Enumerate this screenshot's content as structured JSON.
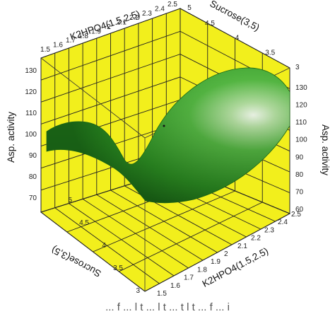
{
  "chart_data": {
    "type": "surface3d",
    "title": "",
    "x_axis": {
      "label": "K2HPO4(1.5,2.5)",
      "range": [
        1.5,
        2.5
      ],
      "ticks": [
        "1.5",
        "1.6",
        "1.7",
        "1.8",
        "1.9",
        "2",
        "2.1",
        "2.2",
        "2.3",
        "2.4",
        "2.5"
      ]
    },
    "y_axis": {
      "label": "Sucrose(3,5)",
      "range": [
        3,
        5
      ],
      "ticks": [
        "3",
        "3.5",
        "4",
        "4.5",
        "5"
      ]
    },
    "z_axis": {
      "label": "Asp. activity",
      "range": [
        60,
        130
      ],
      "ticks": [
        "60",
        "70",
        "80",
        "90",
        "100",
        "110",
        "120",
        "130"
      ]
    },
    "grid": true,
    "colors": {
      "walls": "#f2ef1c",
      "surface": "#2f9a24",
      "grid": "#222222"
    },
    "surface_samples": [
      {
        "K2HPO4": 1.5,
        "Sucrose": 3,
        "activity": 94
      },
      {
        "K2HPO4": 1.5,
        "Sucrose": 4,
        "activity": 104
      },
      {
        "K2HPO4": 1.5,
        "Sucrose": 5,
        "activity": 96
      },
      {
        "K2HPO4": 2.0,
        "Sucrose": 3,
        "activity": 112
      },
      {
        "K2HPO4": 2.0,
        "Sucrose": 4,
        "activity": 82
      },
      {
        "K2HPO4": 2.0,
        "Sucrose": 5,
        "activity": 86
      },
      {
        "K2HPO4": 2.5,
        "Sucrose": 3,
        "activity": 128
      },
      {
        "K2HPO4": 2.5,
        "Sucrose": 4,
        "activity": 110
      },
      {
        "K2HPO4": 2.5,
        "Sucrose": 5,
        "activity": 70
      }
    ]
  },
  "labels": {
    "top_k": "K2HPO4(1.5,2.5)",
    "top_s": "Sucrose(3,5)",
    "left_z": "Asp. activity",
    "right_z": "Asp. activity",
    "bot_s": "Sucrose(3,5)",
    "bot_k": "K2HPO4(1.5,2.5)"
  },
  "ticks": {
    "top_k": [
      "1.5",
      "1.6",
      "1.7",
      "1.8",
      "1.9",
      "2",
      "2.1",
      "2.2",
      "2.3",
      "2.4",
      "2.5"
    ],
    "top_s": [
      "4.5",
      "4",
      "3.5",
      "3"
    ],
    "top_corner": "5",
    "left_z": [
      "130",
      "120",
      "110",
      "100",
      "90",
      "80",
      "70"
    ],
    "right_z": [
      "130",
      "120",
      "110",
      "100",
      "90",
      "80",
      "70",
      "60"
    ],
    "bot_s": [
      "5",
      "4.5",
      "4",
      "3.5",
      "3"
    ],
    "bot_k": [
      "2.5",
      "2.4",
      "2.3",
      "2.2",
      "2.1",
      "2",
      "1.9",
      "1.8",
      "1.7",
      "1.6",
      "1.5"
    ]
  },
  "caption": "... f ... l t ... l t ... t l t ... f ... i"
}
